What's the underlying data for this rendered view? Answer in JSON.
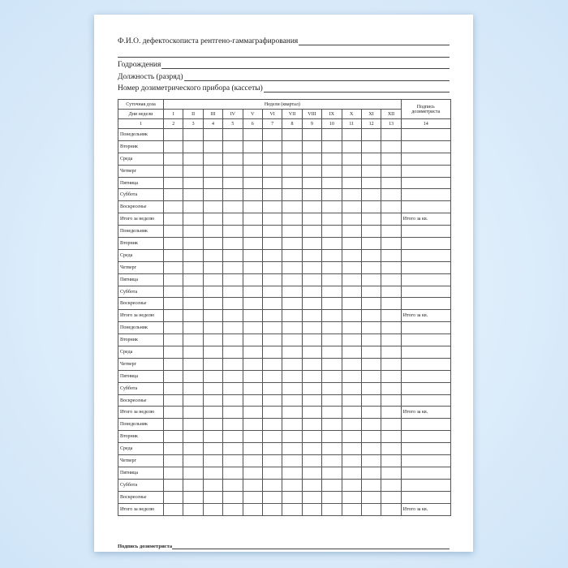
{
  "header": {
    "fio": "Ф.И.О. дефектоскописта рентгено-гаммаграфирования",
    "birth": "Годрождения",
    "position": "Должность (разряд)",
    "device": "Номер дозиметрического прибора (кассеты)"
  },
  "table": {
    "daily_dose": "Суточная доза",
    "weeks_label": "Недели (квартал)",
    "days_label": "Дни недели",
    "signature_col": "Подпись дозиметриста",
    "weeks": [
      "I",
      "II",
      "III",
      "IV",
      "V",
      "VI",
      "VII",
      "VIII",
      "IX",
      "X",
      "XI",
      "XII"
    ],
    "col_numbers": [
      "1",
      "2",
      "3",
      "4",
      "5",
      "6",
      "7",
      "8",
      "9",
      "10",
      "11",
      "12",
      "13",
      "14"
    ],
    "days": [
      "Понедельник",
      "Вторник",
      "Среда",
      "Четверг",
      "Пятница",
      "Суббота",
      "Воскресенье"
    ],
    "week_total": "Итого за неделю",
    "quarter_total": "Итого за кв.",
    "blocks": 4
  },
  "footer": {
    "signature": "Подпись дозиметриста"
  }
}
